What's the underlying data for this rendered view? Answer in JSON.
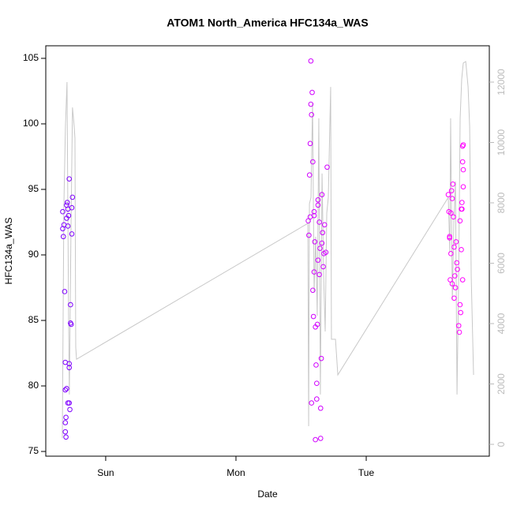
{
  "chart_data": {
    "type": "scatter",
    "title": "ATOM1 North_America HFC134a_WAS",
    "x_label": "Date",
    "y_label": "HFC134a_WAS",
    "xlim": [
      -0.46,
      2.945
    ],
    "xticks": [
      {
        "value": 0,
        "label": "Sun"
      },
      {
        "value": 1,
        "label": "Mon"
      },
      {
        "value": 2,
        "label": "Tue"
      }
    ],
    "ylim": [
      74.64,
      105.96
    ],
    "yticks": [
      75,
      80,
      85,
      90,
      95,
      100,
      105
    ],
    "y2lim": [
      -392,
      13203
    ],
    "y2ticks": [
      0,
      2000,
      4000,
      6000,
      8000,
      10000,
      12000
    ],
    "series": [
      {
        "color": "#7f00ff",
        "x": [
          -0.33,
          -0.33,
          -0.325,
          -0.32,
          -0.315,
          -0.31,
          -0.31,
          -0.305,
          -0.305,
          -0.31,
          -0.3,
          -0.3,
          -0.295,
          -0.29,
          -0.29,
          -0.285,
          -0.28,
          -0.28,
          -0.28,
          -0.28,
          -0.275,
          -0.27,
          -0.27,
          -0.265,
          -0.26,
          -0.26,
          -0.255,
          -0.3,
          -0.29,
          -0.31
        ],
        "values": [
          93.3,
          92.0,
          91.4,
          92.3,
          87.2,
          81.8,
          79.7,
          77.6,
          76.1,
          76.5,
          92.8,
          93.8,
          94.0,
          93.5,
          92.2,
          93.0,
          95.8,
          81.7,
          81.4,
          78.7,
          78.2,
          86.2,
          84.8,
          84.7,
          93.6,
          91.6,
          94.4,
          79.8,
          78.7,
          77.2
        ]
      },
      {
        "color": "#d000ff",
        "x": [
          1.555,
          1.56,
          1.565,
          1.57,
          1.575,
          1.575,
          1.58,
          1.585,
          1.59,
          1.59,
          1.595,
          1.6,
          1.6,
          1.605,
          1.61,
          1.615,
          1.62,
          1.62,
          1.625,
          1.63,
          1.63,
          1.64,
          1.645,
          1.65,
          1.655,
          1.66,
          1.665,
          1.67,
          1.675,
          1.68,
          1.69,
          1.7,
          1.61,
          1.65,
          1.58,
          1.57,
          1.6,
          1.63,
          1.64,
          1.66
        ],
        "values": [
          92.6,
          91.5,
          96.1,
          98.5,
          104.8,
          101.5,
          100.7,
          102.4,
          97.1,
          87.3,
          85.3,
          88.7,
          93.0,
          91.0,
          84.5,
          81.6,
          80.2,
          79.0,
          84.7,
          89.6,
          93.8,
          92.5,
          90.5,
          78.3,
          82.1,
          94.6,
          91.7,
          89.1,
          90.1,
          92.3,
          90.2,
          96.7,
          75.9,
          76.0,
          78.7,
          92.9,
          93.3,
          94.2,
          88.5,
          90.9
        ]
      },
      {
        "color": "#ff00ff",
        "x": [
          2.63,
          2.635,
          2.64,
          2.645,
          2.65,
          2.655,
          2.66,
          2.665,
          2.67,
          2.675,
          2.68,
          2.685,
          2.69,
          2.695,
          2.7,
          2.71,
          2.715,
          2.72,
          2.725,
          2.73,
          2.735,
          2.735,
          2.74,
          2.74,
          2.745,
          2.745,
          2.745,
          2.74,
          2.64,
          2.65,
          2.66,
          2.675,
          2.72,
          2.73
        ],
        "values": [
          94.6,
          93.3,
          91.4,
          88.1,
          90.1,
          94.9,
          94.3,
          95.4,
          92.9,
          90.6,
          88.4,
          87.5,
          91.0,
          89.4,
          88.9,
          84.6,
          84.1,
          86.2,
          85.6,
          90.4,
          93.5,
          94.0,
          97.1,
          98.3,
          98.4,
          96.5,
          95.2,
          88.1,
          91.3,
          93.2,
          87.8,
          86.7,
          92.6,
          93.5
        ]
      }
    ],
    "line": {
      "color": "#c8c8c8",
      "axis": "y2",
      "x": [
        -0.333,
        -0.321,
        -0.309,
        -0.297,
        -0.285,
        -0.279,
        -0.267,
        -0.255,
        -0.242,
        -0.236,
        -0.23,
        -0.224,
        1.552,
        1.558,
        1.564,
        1.576,
        1.588,
        1.6,
        1.612,
        1.624,
        1.636,
        1.648,
        1.661,
        1.673,
        1.685,
        1.697,
        1.709,
        1.727,
        1.733,
        1.745,
        1.764,
        1.782,
        2.63,
        2.642,
        2.648,
        2.661,
        2.673,
        2.685,
        2.697,
        2.709,
        2.721,
        2.733,
        2.745,
        2.764,
        2.782,
        2.794,
        2.806,
        2.824
      ],
      "values": [
        200,
        7920,
        10540,
        12000,
        4260,
        1650,
        6880,
        11160,
        10540,
        10140,
        3220,
        2820,
        7320,
        600,
        7970,
        8180,
        11320,
        5050,
        6880,
        4260,
        10800,
        1650,
        8970,
        5570,
        3740,
        7660,
        8180,
        11840,
        3480,
        3480,
        3480,
        2300,
        8180,
        6350,
        10800,
        4780,
        7400,
        8710,
        1650,
        5310,
        10800,
        12100,
        12630,
        12680,
        11840,
        10540,
        5570,
        2300
      ]
    }
  }
}
